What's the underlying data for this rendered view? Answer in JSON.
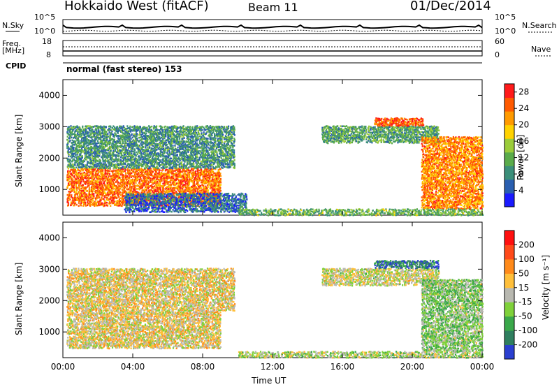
{
  "header": {
    "radar_title": "Hokkaido West (fitACF)",
    "beam": "Beam 11",
    "date": "01/Dec/2014"
  },
  "top_panels": {
    "nsky_label": "N.Sky",
    "nsky_ticks": [
      "10^5",
      "10^0"
    ],
    "nsearch_label": "N.Search",
    "nsearch_ticks": [
      "10^5",
      "10^0"
    ],
    "freq_label": "Freq.",
    "freq_unit": "[MHz]",
    "freq_ticks": [
      "18",
      "8"
    ],
    "nave_label": "Nave",
    "nave_ticks": [
      "60",
      "0"
    ],
    "cpid_label": "CPID",
    "cpid_value": "normal (fast stereo) 153"
  },
  "chart_data": [
    {
      "type": "heatmap",
      "name": "power",
      "xlabel": "Time UT",
      "ylabel": "Slant Range [km]",
      "x_ticks": [
        "00:00",
        "04:00",
        "08:00",
        "12:00",
        "16:00",
        "20:00",
        "00:00"
      ],
      "y_ticks": [
        1000,
        2000,
        3000,
        4000
      ],
      "ylim": [
        180,
        4500
      ],
      "xlim_hours": [
        0,
        24
      ],
      "colorbar_label": "Power [dB]",
      "colorbar_ticks": [
        4,
        8,
        12,
        16,
        20,
        24,
        28
      ],
      "colorbar_range": [
        0,
        30
      ],
      "colors": [
        "#1a1aff",
        "#2a5fb0",
        "#3b8f7a",
        "#5aab4a",
        "#9bcc3a",
        "#ffd200",
        "#ff9a00",
        "#ff5a00",
        "#ff1a1a"
      ],
      "regions": [
        {
          "t": [
            0.2,
            9.0
          ],
          "r": [
            500,
            1700
          ],
          "level": 0.8
        },
        {
          "t": [
            0.2,
            9.8
          ],
          "r": [
            1700,
            3050
          ],
          "level": 0.3
        },
        {
          "t": [
            3.5,
            10.5
          ],
          "r": [
            300,
            900
          ],
          "level": 0.2
        },
        {
          "t": [
            14.8,
            21.5
          ],
          "r": [
            2500,
            3050
          ],
          "level": 0.35
        },
        {
          "t": [
            17.8,
            20.6
          ],
          "r": [
            3050,
            3300
          ],
          "level": 0.85
        },
        {
          "t": [
            20.5,
            24.0
          ],
          "r": [
            400,
            2700
          ],
          "level": 0.75
        },
        {
          "t": [
            10.0,
            24.0
          ],
          "r": [
            200,
            400
          ],
          "level": 0.4
        }
      ]
    },
    {
      "type": "heatmap",
      "name": "velocity",
      "xlabel": "Time UT",
      "ylabel": "Slant Range [km]",
      "x_ticks": [
        "00:00",
        "04:00",
        "08:00",
        "12:00",
        "16:00",
        "20:00",
        "00:00"
      ],
      "y_ticks": [
        1000,
        2000,
        3000,
        4000
      ],
      "ylim": [
        180,
        4500
      ],
      "xlim_hours": [
        0,
        24
      ],
      "colorbar_label": "Velocity [m s⁻¹]",
      "colorbar_ticks": [
        "200",
        "100",
        "50",
        "15",
        "-15",
        "-50",
        "-100",
        "-200"
      ],
      "colors": [
        "#2a3fd0",
        "#2f7f5f",
        "#3aa84a",
        "#7fd13a",
        "#b8b8b0",
        "#ffbf3a",
        "#ff8a1a",
        "#ff4a1a",
        "#ff1010"
      ],
      "regions": [
        {
          "t": [
            0.2,
            9.0
          ],
          "r": [
            500,
            1700
          ],
          "level": 0.55
        },
        {
          "t": [
            0.2,
            9.8
          ],
          "r": [
            1700,
            3050
          ],
          "level": 0.55
        },
        {
          "t": [
            14.8,
            21.5
          ],
          "r": [
            2500,
            3050
          ],
          "level": 0.5
        },
        {
          "t": [
            17.8,
            21.5
          ],
          "r": [
            3050,
            3300
          ],
          "level": 0.15
        },
        {
          "t": [
            20.5,
            24.0
          ],
          "r": [
            400,
            2700
          ],
          "level": 0.4
        },
        {
          "t": [
            10.0,
            24.0
          ],
          "r": [
            200,
            400
          ],
          "level": 0.45
        }
      ]
    }
  ]
}
